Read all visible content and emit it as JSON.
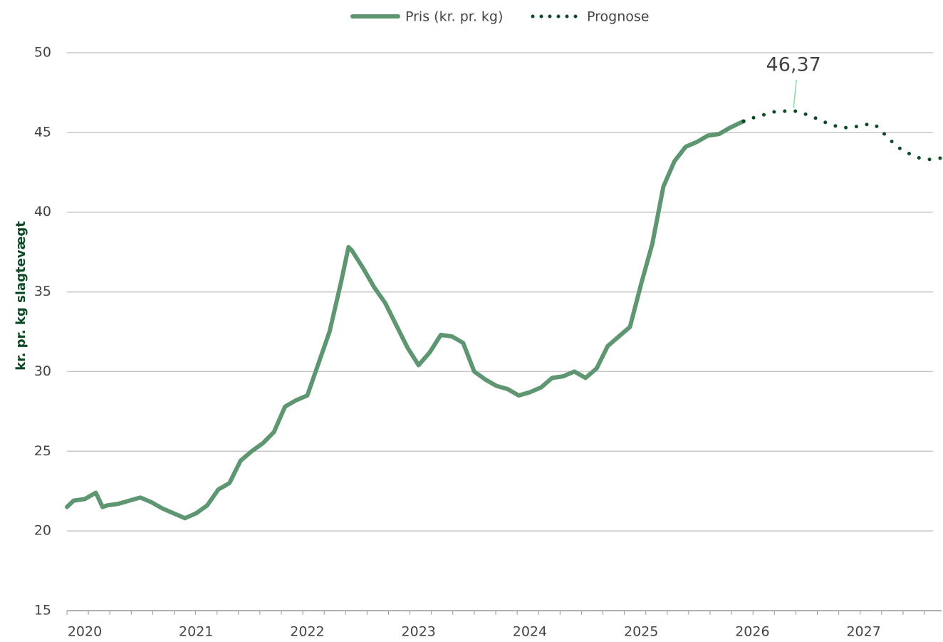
{
  "chart_data": {
    "type": "line",
    "y_label": "kr. pr. kg slagtevægt",
    "x": [
      2019.84,
      2019.9,
      2020.0,
      2020.1,
      2020.16,
      2020.2,
      2020.3,
      2020.4,
      2020.5,
      2020.6,
      2020.7,
      2020.8,
      2020.9,
      2021.0,
      2021.1,
      2021.2,
      2021.3,
      2021.4,
      2021.5,
      2021.6,
      2021.7,
      2021.8,
      2021.9,
      2022.0,
      2022.1,
      2022.2,
      2022.3,
      2022.37,
      2022.4,
      2022.5,
      2022.6,
      2022.7,
      2022.8,
      2022.9,
      2023.0,
      2023.1,
      2023.2,
      2023.3,
      2023.4,
      2023.5,
      2023.6,
      2023.7,
      2023.8,
      2023.9,
      2024.0,
      2024.1,
      2024.2,
      2024.3,
      2024.4,
      2024.5,
      2024.6,
      2024.7,
      2024.8,
      2024.9,
      2025.0,
      2025.1,
      2025.2,
      2025.3,
      2025.4,
      2025.5,
      2025.6,
      2025.7,
      2025.8,
      2025.92,
      2026.0,
      2026.1,
      2026.2,
      2026.37,
      2026.5,
      2026.6,
      2026.7,
      2026.8,
      2026.9,
      2027.0,
      2027.1,
      2027.2,
      2027.3,
      2027.4,
      2027.5,
      2027.6,
      2027.7
    ],
    "series": [
      {
        "name": "Pris (kr. pr. kg)",
        "color": "#5e9672",
        "style": "solid",
        "values": [
          21.5,
          21.9,
          22.0,
          22.4,
          21.5,
          21.6,
          21.7,
          21.9,
          22.1,
          21.8,
          21.4,
          21.1,
          20.8,
          21.1,
          21.6,
          22.6,
          23.0,
          24.4,
          25.0,
          25.5,
          26.2,
          27.8,
          28.2,
          28.5,
          30.5,
          32.5,
          35.5,
          37.8,
          37.6,
          36.5,
          35.3,
          34.3,
          32.9,
          31.5,
          30.4,
          31.2,
          32.3,
          32.2,
          31.8,
          30.0,
          29.5,
          29.1,
          28.9,
          28.5,
          28.7,
          29.0,
          29.6,
          29.7,
          30.0,
          29.6,
          30.2,
          31.6,
          32.2,
          32.8,
          35.5,
          38.0,
          41.6,
          43.2,
          44.1,
          44.4,
          44.8,
          44.9,
          45.3,
          45.7,
          null,
          null,
          null,
          null,
          null,
          null,
          null,
          null,
          null,
          null,
          null,
          null,
          null,
          null,
          null,
          null,
          null
        ]
      },
      {
        "name": "Prognose",
        "color": "#0b4a25",
        "style": "dotted",
        "values": [
          null,
          null,
          null,
          null,
          null,
          null,
          null,
          null,
          null,
          null,
          null,
          null,
          null,
          null,
          null,
          null,
          null,
          null,
          null,
          null,
          null,
          null,
          null,
          null,
          null,
          null,
          null,
          null,
          null,
          null,
          null,
          null,
          null,
          null,
          null,
          null,
          null,
          null,
          null,
          null,
          null,
          null,
          null,
          null,
          null,
          null,
          null,
          null,
          null,
          null,
          null,
          null,
          null,
          null,
          null,
          null,
          null,
          null,
          null,
          null,
          null,
          null,
          null,
          45.7,
          45.9,
          46.1,
          46.3,
          46.37,
          46.1,
          45.8,
          45.5,
          45.3,
          45.3,
          45.5,
          45.5,
          44.8,
          44.1,
          43.7,
          43.4,
          43.3,
          43.4
        ]
      }
    ],
    "annotations": [
      {
        "text": "46,37",
        "x": 2026.37,
        "value": 46.37
      }
    ],
    "xlim": [
      2019.84,
      2027.7
    ],
    "xticks": [
      2020,
      2021,
      2022,
      2023,
      2024,
      2025,
      2026,
      2027
    ],
    "ylim": [
      15,
      50
    ],
    "yticks": [
      15,
      20,
      25,
      30,
      35,
      40,
      45,
      50
    ],
    "grid": true,
    "legend": "top"
  }
}
